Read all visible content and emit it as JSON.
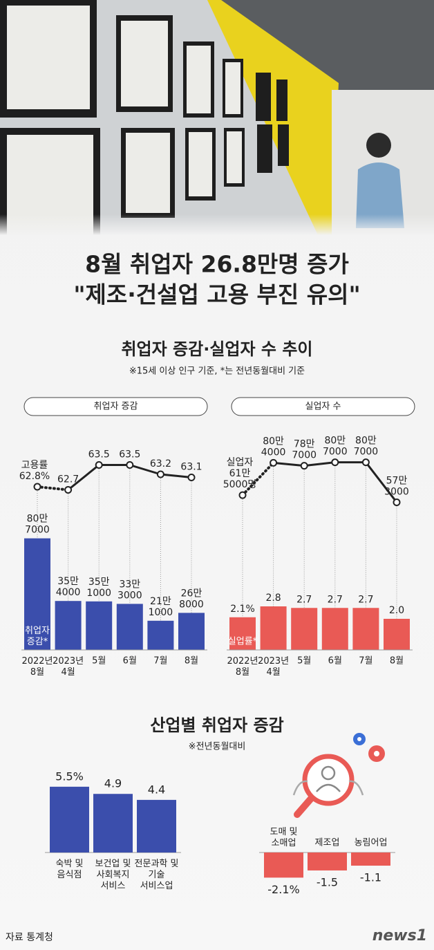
{
  "title": "8월 취업자 26.8만명 증가",
  "subtitle": "\"제조·건설업 고용 부진 유의\"",
  "section_title": "취업자 증감·실업자 수 추이",
  "section_note": "※15세 이상 인구 기준, *는 전년동월대비 기준",
  "chart_data": [
    {
      "type": "bar",
      "header": "취업자 증감",
      "categories": [
        "2022년\n8월",
        "2023년\n4월",
        "5월",
        "6월",
        "7월",
        "8월"
      ],
      "ylim": [
        0,
        900000
      ],
      "y2lim": [
        60,
        64
      ],
      "series": [
        {
          "name": "취업자\n증감*",
          "type": "bar",
          "color": "#3b4eac",
          "values": [
            807000,
            354000,
            351000,
            333000,
            211000,
            268000
          ],
          "value_labels": [
            "80만\n7000",
            "35만\n4000",
            "35만\n1000",
            "33만\n3000",
            "21만\n1000",
            "26만\n8000"
          ]
        },
        {
          "name": "고용률",
          "type": "line",
          "axis": "y2",
          "color": "#222222",
          "values": [
            62.8,
            62.7,
            63.5,
            63.5,
            63.2,
            63.1
          ],
          "value_labels": [
            "62.8%",
            "62.7",
            "63.5",
            "63.5",
            "63.2",
            "63.1"
          ]
        }
      ]
    },
    {
      "type": "bar",
      "header": "실업자 수",
      "categories": [
        "2022년\n8월",
        "2023년\n4월",
        "5월",
        "6월",
        "7월",
        "8월"
      ],
      "ylim": [
        0,
        8
      ],
      "y2lim": [
        0,
        1000000
      ],
      "series": [
        {
          "name": "실업률*",
          "type": "bar",
          "color": "#e95a55",
          "values": [
            2.1,
            2.8,
            2.7,
            2.7,
            2.7,
            2.0
          ],
          "value_labels": [
            "2.1%",
            "2.8",
            "2.7",
            "2.7",
            "2.7",
            "2.0"
          ]
        },
        {
          "name": "실업자",
          "type": "line",
          "axis": "y2",
          "color": "#222222",
          "values": [
            615000,
            804000,
            787000,
            807000,
            807000,
            573000
          ],
          "value_labels": [
            "61만\n5000명",
            "80만\n4000",
            "78만\n7000",
            "80만\n7000",
            "80만\n7000",
            "57만\n3000"
          ]
        }
      ]
    },
    {
      "type": "bar",
      "title": "산업별 취업자 증감",
      "note": "※전년동월대비",
      "categories": [
        "숙박 및\n음식점",
        "보건업 및\n사회복지\n서비스",
        "전문과학 및\n기술\n서비스업",
        "도매 및\n소매업",
        "제조업",
        "농림어업"
      ],
      "values": [
        5.5,
        4.9,
        4.4,
        -2.1,
        -1.5,
        -1.1
      ],
      "value_labels": [
        "5.5%",
        "4.9",
        "4.4",
        "-2.1%",
        "-1.5",
        "-1.1"
      ],
      "color": "#3b4eac",
      "negative_color": "#e95a55",
      "ylim": [
        -3,
        6
      ]
    }
  ],
  "source": "자료 통계청",
  "logo": "news1"
}
